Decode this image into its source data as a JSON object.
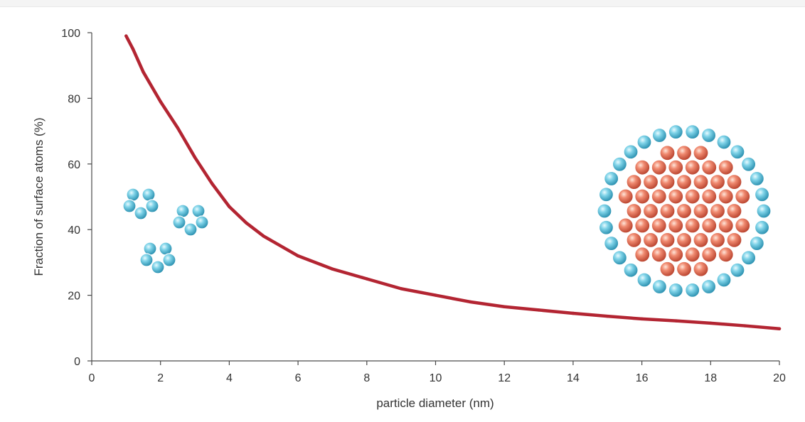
{
  "chart_data": {
    "type": "line",
    "title": "",
    "xlabel": "particle diameter (nm)",
    "ylabel": "Fraction of surface atoms (%)",
    "xlim": [
      0,
      20
    ],
    "ylim": [
      0,
      100
    ],
    "x_ticks": [
      "0",
      "2",
      "4",
      "6",
      "8",
      "10",
      "12",
      "14",
      "16",
      "18",
      "20"
    ],
    "y_ticks": [
      "0",
      "20",
      "40",
      "60",
      "80",
      "100"
    ],
    "grid": false,
    "legend": "none",
    "series": [
      {
        "color": "#b32532",
        "x": [
          1.0,
          1.2,
          1.5,
          2.0,
          2.5,
          3.0,
          3.5,
          4.0,
          4.5,
          5.0,
          6.0,
          7.0,
          8.0,
          9.0,
          10.0,
          11.0,
          12.0,
          13.0,
          14.0,
          15.0,
          16.0,
          17.0,
          18.0,
          19.0,
          20.0
        ],
        "y": [
          99,
          95,
          88,
          79,
          71,
          62,
          54,
          47,
          42,
          38,
          32,
          28,
          25,
          22,
          20,
          18,
          16.5,
          15.5,
          14.5,
          13.6,
          12.8,
          12.2,
          11.5,
          10.7,
          9.8
        ]
      }
    ],
    "annotations": [
      {
        "kind": "small-atom-cluster-illustration",
        "atom_color": "#3fa7c4"
      },
      {
        "kind": "large-nanoparticle-cross-section",
        "core_color": "#d9614a",
        "surface_color": "#3fa7c4"
      }
    ]
  }
}
